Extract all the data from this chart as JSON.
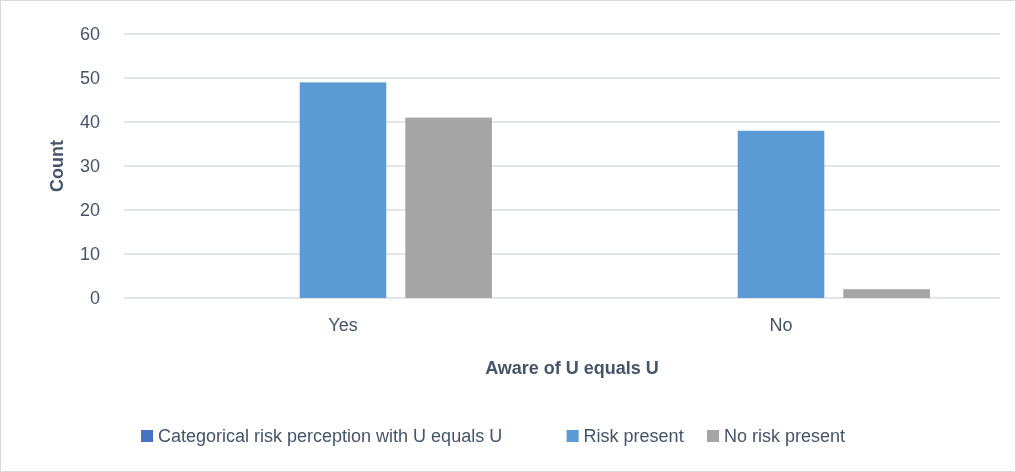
{
  "chart_data": {
    "type": "bar",
    "xlabel": "Aware of U equals U",
    "ylabel": "Count",
    "categories": [
      "Yes",
      "No"
    ],
    "series": [
      {
        "name": "Categorical risk perception with U equals U",
        "color": "#4472c4",
        "values": [
          null,
          null
        ]
      },
      {
        "name": "Risk present",
        "color": "#5b9bd5",
        "values": [
          49,
          38
        ]
      },
      {
        "name": "No risk present",
        "color": "#a5a5a5",
        "values": [
          41,
          2
        ]
      }
    ],
    "ylim": [
      0,
      60
    ],
    "yticks": [
      0,
      10,
      20,
      30,
      40,
      50,
      60
    ],
    "grid": "y",
    "legend": "bottom"
  }
}
